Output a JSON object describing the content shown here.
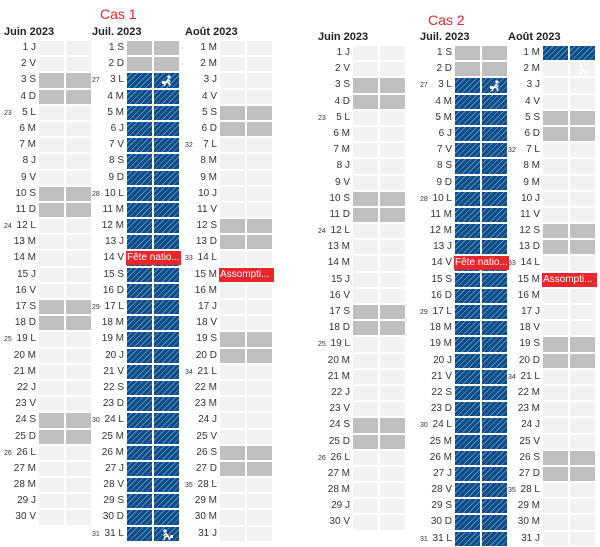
{
  "cases": [
    {
      "title": "Cas 1",
      "months": [
        {
          "title": "Juin 2023",
          "days": [
            {
              "n": "1",
              "d": "J"
            },
            {
              "n": "2",
              "d": "V"
            },
            {
              "n": "3",
              "d": "S",
              "we": true
            },
            {
              "n": "4",
              "d": "D",
              "we": true
            },
            {
              "n": "5",
              "d": "L",
              "wk": "23"
            },
            {
              "n": "6",
              "d": "M"
            },
            {
              "n": "7",
              "d": "M"
            },
            {
              "n": "8",
              "d": "J"
            },
            {
              "n": "9",
              "d": "V"
            },
            {
              "n": "10",
              "d": "S",
              "we": true
            },
            {
              "n": "11",
              "d": "D",
              "we": true
            },
            {
              "n": "12",
              "d": "L",
              "wk": "24"
            },
            {
              "n": "13",
              "d": "M"
            },
            {
              "n": "14",
              "d": "M"
            },
            {
              "n": "15",
              "d": "J"
            },
            {
              "n": "16",
              "d": "V"
            },
            {
              "n": "17",
              "d": "S",
              "we": true
            },
            {
              "n": "18",
              "d": "D",
              "we": true
            },
            {
              "n": "19",
              "d": "L",
              "wk": "25"
            },
            {
              "n": "20",
              "d": "M"
            },
            {
              "n": "21",
              "d": "M"
            },
            {
              "n": "22",
              "d": "J"
            },
            {
              "n": "23",
              "d": "V"
            },
            {
              "n": "24",
              "d": "S",
              "we": true
            },
            {
              "n": "25",
              "d": "D",
              "we": true
            },
            {
              "n": "26",
              "d": "L",
              "wk": "26"
            },
            {
              "n": "27",
              "d": "M"
            },
            {
              "n": "28",
              "d": "M"
            },
            {
              "n": "29",
              "d": "J"
            },
            {
              "n": "30",
              "d": "V"
            }
          ]
        },
        {
          "title": "Juil. 2023",
          "days": [
            {
              "n": "1",
              "d": "S",
              "we": true
            },
            {
              "n": "2",
              "d": "D",
              "we": true
            },
            {
              "n": "3",
              "d": "L",
              "wk": "27",
              "vac": true,
              "icon": "departure-icon"
            },
            {
              "n": "4",
              "d": "M",
              "vac": true
            },
            {
              "n": "5",
              "d": "M",
              "vac": true
            },
            {
              "n": "6",
              "d": "J",
              "vac": true
            },
            {
              "n": "7",
              "d": "V",
              "vac": true
            },
            {
              "n": "8",
              "d": "S",
              "vac": true
            },
            {
              "n": "9",
              "d": "D",
              "vac": true
            },
            {
              "n": "10",
              "d": "L",
              "wk": "28",
              "vac": true
            },
            {
              "n": "11",
              "d": "M",
              "vac": true
            },
            {
              "n": "12",
              "d": "M",
              "vac": true
            },
            {
              "n": "13",
              "d": "J",
              "vac": true
            },
            {
              "n": "14",
              "d": "V",
              "vac": true,
              "holiday": "Fête natio..."
            },
            {
              "n": "15",
              "d": "S",
              "vac": true
            },
            {
              "n": "16",
              "d": "D",
              "vac": true
            },
            {
              "n": "17",
              "d": "L",
              "wk": "29",
              "vac": true
            },
            {
              "n": "18",
              "d": "M",
              "vac": true
            },
            {
              "n": "19",
              "d": "M",
              "vac": true
            },
            {
              "n": "20",
              "d": "J",
              "vac": true
            },
            {
              "n": "21",
              "d": "V",
              "vac": true
            },
            {
              "n": "22",
              "d": "S",
              "vac": true
            },
            {
              "n": "23",
              "d": "D",
              "vac": true
            },
            {
              "n": "24",
              "d": "L",
              "wk": "30",
              "vac": true
            },
            {
              "n": "25",
              "d": "M",
              "vac": true
            },
            {
              "n": "26",
              "d": "M",
              "vac": true
            },
            {
              "n": "27",
              "d": "J",
              "vac": true
            },
            {
              "n": "28",
              "d": "V",
              "vac": true
            },
            {
              "n": "29",
              "d": "S",
              "vac": true
            },
            {
              "n": "30",
              "d": "D",
              "vac": true
            },
            {
              "n": "31",
              "d": "L",
              "wk": "31",
              "vac": true,
              "icon": "return-icon"
            }
          ]
        },
        {
          "title": "Août 2023",
          "days": [
            {
              "n": "1",
              "d": "M"
            },
            {
              "n": "2",
              "d": "M"
            },
            {
              "n": "3",
              "d": "J"
            },
            {
              "n": "4",
              "d": "V"
            },
            {
              "n": "5",
              "d": "S",
              "we": true
            },
            {
              "n": "6",
              "d": "D",
              "we": true
            },
            {
              "n": "7",
              "d": "L",
              "wk": "32"
            },
            {
              "n": "8",
              "d": "M"
            },
            {
              "n": "9",
              "d": "M"
            },
            {
              "n": "10",
              "d": "J"
            },
            {
              "n": "11",
              "d": "V"
            },
            {
              "n": "12",
              "d": "S",
              "we": true
            },
            {
              "n": "13",
              "d": "D",
              "we": true
            },
            {
              "n": "14",
              "d": "L",
              "wk": "33"
            },
            {
              "n": "15",
              "d": "M",
              "holiday": "Assompti..."
            },
            {
              "n": "16",
              "d": "M"
            },
            {
              "n": "17",
              "d": "J"
            },
            {
              "n": "18",
              "d": "V"
            },
            {
              "n": "19",
              "d": "S",
              "we": true
            },
            {
              "n": "20",
              "d": "D",
              "we": true
            },
            {
              "n": "21",
              "d": "L",
              "wk": "34"
            },
            {
              "n": "22",
              "d": "M"
            },
            {
              "n": "23",
              "d": "M"
            },
            {
              "n": "24",
              "d": "J"
            },
            {
              "n": "25",
              "d": "V"
            },
            {
              "n": "26",
              "d": "S",
              "we": true
            },
            {
              "n": "27",
              "d": "D",
              "we": true
            },
            {
              "n": "28",
              "d": "L",
              "wk": "35"
            },
            {
              "n": "29",
              "d": "M"
            },
            {
              "n": "30",
              "d": "M"
            },
            {
              "n": "31",
              "d": "J"
            }
          ]
        }
      ]
    },
    {
      "title": "Cas 2",
      "months": [
        {
          "title": "Juin 2023",
          "days": [
            {
              "n": "1",
              "d": "J"
            },
            {
              "n": "2",
              "d": "V"
            },
            {
              "n": "3",
              "d": "S",
              "we": true
            },
            {
              "n": "4",
              "d": "D",
              "we": true
            },
            {
              "n": "5",
              "d": "L",
              "wk": "23"
            },
            {
              "n": "6",
              "d": "M"
            },
            {
              "n": "7",
              "d": "M"
            },
            {
              "n": "8",
              "d": "J"
            },
            {
              "n": "9",
              "d": "V"
            },
            {
              "n": "10",
              "d": "S",
              "we": true
            },
            {
              "n": "11",
              "d": "D",
              "we": true
            },
            {
              "n": "12",
              "d": "L",
              "wk": "24"
            },
            {
              "n": "13",
              "d": "M"
            },
            {
              "n": "14",
              "d": "M"
            },
            {
              "n": "15",
              "d": "J"
            },
            {
              "n": "16",
              "d": "V"
            },
            {
              "n": "17",
              "d": "S",
              "we": true
            },
            {
              "n": "18",
              "d": "D",
              "we": true
            },
            {
              "n": "19",
              "d": "L",
              "wk": "25"
            },
            {
              "n": "20",
              "d": "M"
            },
            {
              "n": "21",
              "d": "M"
            },
            {
              "n": "22",
              "d": "J"
            },
            {
              "n": "23",
              "d": "V"
            },
            {
              "n": "24",
              "d": "S",
              "we": true
            },
            {
              "n": "25",
              "d": "D",
              "we": true
            },
            {
              "n": "26",
              "d": "L",
              "wk": "26"
            },
            {
              "n": "27",
              "d": "M"
            },
            {
              "n": "28",
              "d": "M"
            },
            {
              "n": "29",
              "d": "J"
            },
            {
              "n": "30",
              "d": "V"
            }
          ]
        },
        {
          "title": "Juil. 2023",
          "days": [
            {
              "n": "1",
              "d": "S",
              "we": true
            },
            {
              "n": "2",
              "d": "D",
              "we": true
            },
            {
              "n": "3",
              "d": "L",
              "wk": "27",
              "vac": true,
              "icon": "departure-icon"
            },
            {
              "n": "4",
              "d": "M",
              "vac": true
            },
            {
              "n": "5",
              "d": "M",
              "vac": true
            },
            {
              "n": "6",
              "d": "J",
              "vac": true
            },
            {
              "n": "7",
              "d": "V",
              "vac": true
            },
            {
              "n": "8",
              "d": "S",
              "vac": true
            },
            {
              "n": "9",
              "d": "D",
              "vac": true
            },
            {
              "n": "10",
              "d": "L",
              "wk": "28",
              "vac": true
            },
            {
              "n": "11",
              "d": "M",
              "vac": true
            },
            {
              "n": "12",
              "d": "M",
              "vac": true
            },
            {
              "n": "13",
              "d": "J",
              "vac": true
            },
            {
              "n": "14",
              "d": "V",
              "vac": true,
              "holiday": "Fête natio..."
            },
            {
              "n": "15",
              "d": "S",
              "vac": true
            },
            {
              "n": "16",
              "d": "D",
              "vac": true
            },
            {
              "n": "17",
              "d": "L",
              "wk": "29",
              "vac": true
            },
            {
              "n": "18",
              "d": "M",
              "vac": true
            },
            {
              "n": "19",
              "d": "M",
              "vac": true
            },
            {
              "n": "20",
              "d": "J",
              "vac": true
            },
            {
              "n": "21",
              "d": "V",
              "vac": true
            },
            {
              "n": "22",
              "d": "S",
              "vac": true
            },
            {
              "n": "23",
              "d": "D",
              "vac": true
            },
            {
              "n": "24",
              "d": "L",
              "wk": "30",
              "vac": true
            },
            {
              "n": "25",
              "d": "M",
              "vac": true
            },
            {
              "n": "26",
              "d": "M",
              "vac": true
            },
            {
              "n": "27",
              "d": "J",
              "vac": true
            },
            {
              "n": "28",
              "d": "V",
              "vac": true
            },
            {
              "n": "29",
              "d": "S",
              "vac": true
            },
            {
              "n": "30",
              "d": "D",
              "vac": true
            },
            {
              "n": "31",
              "d": "L",
              "wk": "31",
              "vac": true
            }
          ]
        },
        {
          "title": "Août 2023",
          "days": [
            {
              "n": "1",
              "d": "M",
              "vac": true
            },
            {
              "n": "2",
              "d": "M",
              "icon": "return-icon"
            },
            {
              "n": "3",
              "d": "J"
            },
            {
              "n": "4",
              "d": "V"
            },
            {
              "n": "5",
              "d": "S",
              "we": true
            },
            {
              "n": "6",
              "d": "D",
              "we": true
            },
            {
              "n": "7",
              "d": "L",
              "wk": "32"
            },
            {
              "n": "8",
              "d": "M"
            },
            {
              "n": "9",
              "d": "M"
            },
            {
              "n": "10",
              "d": "J"
            },
            {
              "n": "11",
              "d": "V"
            },
            {
              "n": "12",
              "d": "S",
              "we": true
            },
            {
              "n": "13",
              "d": "D",
              "we": true
            },
            {
              "n": "14",
              "d": "L",
              "wk": "33"
            },
            {
              "n": "15",
              "d": "M",
              "holiday": "Assompti..."
            },
            {
              "n": "16",
              "d": "M"
            },
            {
              "n": "17",
              "d": "J"
            },
            {
              "n": "18",
              "d": "V"
            },
            {
              "n": "19",
              "d": "S",
              "we": true
            },
            {
              "n": "20",
              "d": "D",
              "we": true
            },
            {
              "n": "21",
              "d": "L",
              "wk": "34"
            },
            {
              "n": "22",
              "d": "M"
            },
            {
              "n": "23",
              "d": "M"
            },
            {
              "n": "24",
              "d": "J"
            },
            {
              "n": "25",
              "d": "V"
            },
            {
              "n": "26",
              "d": "S",
              "we": true
            },
            {
              "n": "27",
              "d": "D",
              "we": true
            },
            {
              "n": "28",
              "d": "L",
              "wk": "35"
            },
            {
              "n": "29",
              "d": "M"
            },
            {
              "n": "30",
              "d": "M"
            },
            {
              "n": "31",
              "d": "J"
            }
          ]
        }
      ]
    }
  ],
  "colors": {
    "vacation": "#0a4d8c",
    "weekend": "#bfbfbf",
    "weekday": "#f2f2f2",
    "holiday": "#e8262b",
    "title": "#e8262b"
  }
}
